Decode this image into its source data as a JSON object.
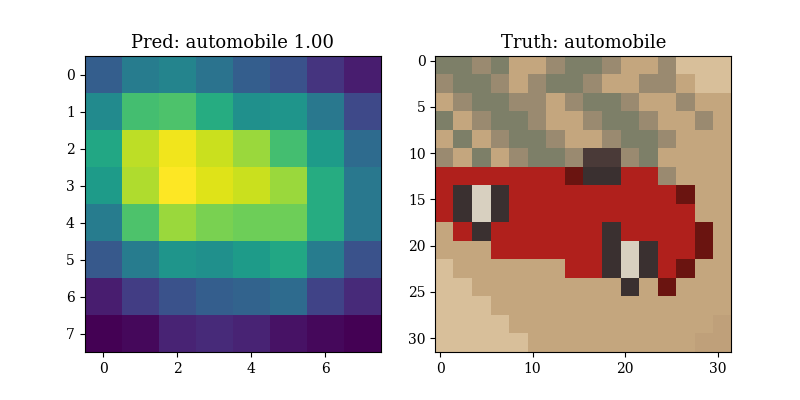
{
  "chart_data": [
    {
      "type": "heatmap",
      "title": "Pred: automobile 1.00",
      "color": "viridis",
      "cells": [
        [
          0.3,
          0.42,
          0.45,
          0.38,
          0.3,
          0.25,
          0.15,
          0.08
        ],
        [
          0.48,
          0.7,
          0.72,
          0.62,
          0.5,
          0.52,
          0.4,
          0.22
        ],
        [
          0.6,
          0.9,
          0.98,
          0.92,
          0.85,
          0.7,
          0.55,
          0.35
        ],
        [
          0.55,
          0.88,
          1.0,
          0.95,
          0.92,
          0.85,
          0.62,
          0.4
        ],
        [
          0.42,
          0.72,
          0.85,
          0.8,
          0.78,
          0.78,
          0.62,
          0.4
        ],
        [
          0.28,
          0.42,
          0.52,
          0.5,
          0.55,
          0.6,
          0.42,
          0.25
        ],
        [
          0.08,
          0.18,
          0.25,
          0.3,
          0.32,
          0.35,
          0.2,
          0.12
        ],
        [
          0.0,
          0.02,
          0.1,
          0.12,
          0.1,
          0.05,
          0.02,
          0.0
        ]
      ],
      "xlim": [
        -0.5,
        7.5
      ],
      "ylim": [
        7.5,
        -0.5
      ],
      "xticks": [
        0,
        2,
        4,
        6
      ],
      "yticks": [
        0,
        1,
        2,
        3,
        4,
        5,
        6,
        7
      ]
    },
    {
      "type": "image",
      "title": "Truth: automobile",
      "pixels": [
        [
          "#7d7f68",
          "#7d7f68",
          "#9a8a70",
          "#7d7f68",
          "#c4a67e",
          "#c4a67e",
          "#9a8a70",
          "#7d7f68",
          "#7d7f68",
          "#9a8a70",
          "#c4a67e",
          "#c4a67e",
          "#9a8a70",
          "#d8bf9a",
          "#d8bf9a",
          "#d8bf9a"
        ],
        [
          "#9a8a70",
          "#7d7f68",
          "#7d7f68",
          "#9a8a70",
          "#c4a67e",
          "#9a8a70",
          "#7d7f68",
          "#7d7f68",
          "#9a8a70",
          "#c4a67e",
          "#c4a67e",
          "#9a8a70",
          "#9a8a70",
          "#c4a67e",
          "#d8bf9a",
          "#d8bf9a"
        ],
        [
          "#c4a67e",
          "#9a8a70",
          "#7d7f68",
          "#7d7f68",
          "#9a8a70",
          "#9a8a70",
          "#c4a67e",
          "#9a8a70",
          "#7d7f68",
          "#7d7f68",
          "#9a8a70",
          "#c4a67e",
          "#c4a67e",
          "#9a8a70",
          "#c4a67e",
          "#c4a67e"
        ],
        [
          "#7d7f68",
          "#c4a67e",
          "#9a8a70",
          "#7d7f68",
          "#7d7f68",
          "#9a8a70",
          "#c4a67e",
          "#c4a67e",
          "#9a8a70",
          "#7d7f68",
          "#7d7f68",
          "#9a8a70",
          "#c4a67e",
          "#c4a67e",
          "#9a8a70",
          "#c4a67e"
        ],
        [
          "#c4a67e",
          "#7d7f68",
          "#c4a67e",
          "#9a8a70",
          "#7d7f68",
          "#7d7f68",
          "#9a8a70",
          "#c4a67e",
          "#c4a67e",
          "#9a8a70",
          "#7d7f68",
          "#7d7f68",
          "#9a8a70",
          "#c4a67e",
          "#c4a67e",
          "#c4a67e"
        ],
        [
          "#9a8a70",
          "#c4a67e",
          "#7d7f68",
          "#c4a67e",
          "#9a8a70",
          "#7d7f68",
          "#7d7f68",
          "#9a8a70",
          "#4a3a38",
          "#4a3a38",
          "#9a8a70",
          "#7d7f68",
          "#c4a67e",
          "#c4a67e",
          "#c4a67e",
          "#c4a67e"
        ],
        [
          "#b0201c",
          "#b0201c",
          "#b0201c",
          "#b0201c",
          "#b0201c",
          "#b0201c",
          "#b0201c",
          "#6a1410",
          "#3a3030",
          "#3a3030",
          "#b0201c",
          "#b0201c",
          "#9a8a70",
          "#c4a67e",
          "#c4a67e",
          "#c4a67e"
        ],
        [
          "#b0201c",
          "#3a3030",
          "#d8d0c0",
          "#3a3030",
          "#b0201c",
          "#b0201c",
          "#b0201c",
          "#b0201c",
          "#b0201c",
          "#b0201c",
          "#b0201c",
          "#b0201c",
          "#b0201c",
          "#6a1410",
          "#c4a67e",
          "#c4a67e"
        ],
        [
          "#b0201c",
          "#3a3030",
          "#d8d0c0",
          "#3a3030",
          "#b0201c",
          "#b0201c",
          "#b0201c",
          "#b0201c",
          "#b0201c",
          "#b0201c",
          "#b0201c",
          "#b0201c",
          "#b0201c",
          "#b0201c",
          "#c4a67e",
          "#c4a67e"
        ],
        [
          "#c4a67e",
          "#b0201c",
          "#3a3030",
          "#b0201c",
          "#b0201c",
          "#b0201c",
          "#b0201c",
          "#b0201c",
          "#b0201c",
          "#3a3030",
          "#b0201c",
          "#b0201c",
          "#b0201c",
          "#b0201c",
          "#6a1410",
          "#c4a67e"
        ],
        [
          "#c4a67e",
          "#c4a67e",
          "#c4a67e",
          "#b0201c",
          "#b0201c",
          "#b0201c",
          "#b0201c",
          "#b0201c",
          "#b0201c",
          "#3a3030",
          "#d8d0c0",
          "#3a3030",
          "#b0201c",
          "#b0201c",
          "#6a1410",
          "#c4a67e"
        ],
        [
          "#d8bf9a",
          "#c4a67e",
          "#c4a67e",
          "#c4a67e",
          "#c4a67e",
          "#c4a67e",
          "#c4a67e",
          "#b0201c",
          "#b0201c",
          "#3a3030",
          "#d8d0c0",
          "#3a3030",
          "#b0201c",
          "#6a1410",
          "#c4a67e",
          "#c4a67e"
        ],
        [
          "#d8bf9a",
          "#d8bf9a",
          "#c4a67e",
          "#c4a67e",
          "#c4a67e",
          "#c4a67e",
          "#c4a67e",
          "#c4a67e",
          "#c4a67e",
          "#c4a67e",
          "#3a3030",
          "#c4a67e",
          "#6a1410",
          "#c4a67e",
          "#c4a67e",
          "#c4a67e"
        ],
        [
          "#d8bf9a",
          "#d8bf9a",
          "#d8bf9a",
          "#c4a67e",
          "#c4a67e",
          "#c4a67e",
          "#c4a67e",
          "#c4a67e",
          "#c4a67e",
          "#c4a67e",
          "#c4a67e",
          "#c4a67e",
          "#c4a67e",
          "#c4a67e",
          "#c4a67e",
          "#c4a67e"
        ],
        [
          "#d8bf9a",
          "#d8bf9a",
          "#d8bf9a",
          "#d8bf9a",
          "#c4a67e",
          "#c4a67e",
          "#c4a67e",
          "#c4a67e",
          "#c4a67e",
          "#c4a67e",
          "#c4a67e",
          "#c4a67e",
          "#c4a67e",
          "#c4a67e",
          "#c4a67e",
          "#bfa07a"
        ],
        [
          "#d8bf9a",
          "#d8bf9a",
          "#d8bf9a",
          "#d8bf9a",
          "#d8bf9a",
          "#c4a67e",
          "#c4a67e",
          "#c4a67e",
          "#c4a67e",
          "#c4a67e",
          "#c4a67e",
          "#c4a67e",
          "#c4a67e",
          "#c4a67e",
          "#bfa07a",
          "#bfa07a"
        ]
      ],
      "xlim": [
        -0.5,
        31.5
      ],
      "ylim": [
        31.5,
        -0.5
      ],
      "xticks": [
        0,
        10,
        20,
        30
      ],
      "yticks": [
        0,
        5,
        10,
        15,
        20,
        25,
        30
      ]
    }
  ]
}
